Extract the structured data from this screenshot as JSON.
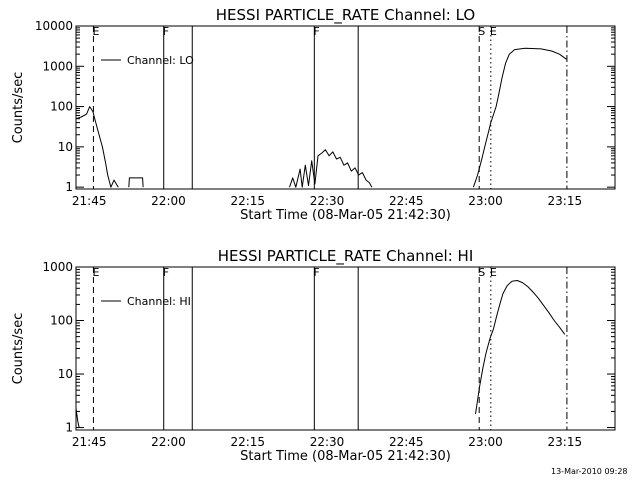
{
  "footer": {
    "timestamp": "13-Mar-2010 09:28"
  },
  "chart_data": [
    {
      "type": "line",
      "title": "HESSI PARTICLE_RATE Channel: LO",
      "xlabel": "Start Time (08-Mar-05 21:42:30)",
      "ylabel": "Counts/sec",
      "xlim_min": [
        0,
        102
      ],
      "x_ticks": [
        2.5,
        17.5,
        32.5,
        47.5,
        62.5,
        77.5,
        92.5
      ],
      "x_tick_labels": [
        "21:45",
        "22:00",
        "22:15",
        "22:30",
        "22:45",
        "23:00",
        "23:15"
      ],
      "y_scale": "log",
      "ylim": [
        0.9,
        10000
      ],
      "y_ticks": [
        1,
        10,
        100,
        1000,
        10000
      ],
      "y_tick_labels": [
        "1",
        "10",
        "100",
        "1000",
        "10000"
      ],
      "legend": {
        "position": "top-left",
        "label": "Channel: LO"
      },
      "markers": [
        {
          "x": 3.3,
          "style": "dash",
          "label": "E"
        },
        {
          "x": 16.6,
          "style": "solid",
          "label": "F"
        },
        {
          "x": 22.0,
          "style": "solid",
          "label": ""
        },
        {
          "x": 45.1,
          "style": "solid",
          "label": "F"
        },
        {
          "x": 53.4,
          "style": "solid",
          "label": ""
        },
        {
          "x": 76.3,
          "style": "dash",
          "label": "S"
        },
        {
          "x": 78.5,
          "style": "dot",
          "label": "E"
        },
        {
          "x": 92.9,
          "style": "dashdot",
          "label": ""
        }
      ],
      "series": [
        {
          "name": "Channel: LO",
          "segments": [
            [
              [
                0,
                50
              ],
              [
                1,
                55
              ],
              [
                2,
                65
              ],
              [
                2.6,
                100
              ],
              [
                3.2,
                75
              ],
              [
                4.0,
                30
              ],
              [
                5.0,
                10
              ],
              [
                5.6,
                4
              ],
              [
                6.0,
                2
              ],
              [
                6.6,
                1
              ],
              [
                7.2,
                1.5
              ],
              [
                8.0,
                1
              ]
            ],
            [
              [
                10,
                1
              ],
              [
                10.1,
                1.7
              ],
              [
                12.6,
                1.7
              ],
              [
                12.7,
                1
              ]
            ],
            [
              [
                40.4,
                1
              ],
              [
                41.0,
                1.7
              ],
              [
                41.6,
                1
              ],
              [
                42.4,
                2.8
              ],
              [
                42.8,
                1
              ],
              [
                43.4,
                3.5
              ],
              [
                44.0,
                1.1
              ],
              [
                44.6,
                4.5
              ],
              [
                45.2,
                1.2
              ],
              [
                45.8,
                6
              ],
              [
                46.5,
                7
              ],
              [
                47.2,
                8.5
              ],
              [
                47.9,
                6
              ],
              [
                48.6,
                7.5
              ],
              [
                49.3,
                5
              ],
              [
                50.0,
                5.5
              ],
              [
                50.7,
                3.5
              ],
              [
                51.4,
                4
              ],
              [
                52.1,
                2.5
              ],
              [
                52.8,
                3
              ],
              [
                53.5,
                2
              ],
              [
                54.2,
                2.3
              ],
              [
                54.9,
                1.5
              ],
              [
                55.5,
                1.3
              ],
              [
                56.0,
                1
              ]
            ],
            [
              [
                75.2,
                1
              ],
              [
                76.0,
                2
              ],
              [
                76.8,
                5
              ],
              [
                77.5,
                12
              ],
              [
                78.0,
                22
              ],
              [
                78.5,
                40
              ],
              [
                79.5,
                100
              ],
              [
                80.0,
                200
              ],
              [
                80.6,
                500
              ],
              [
                81.3,
                1200
              ],
              [
                82.0,
                2000
              ],
              [
                83.0,
                2600
              ],
              [
                85.0,
                2800
              ],
              [
                88.0,
                2700
              ],
              [
                90.0,
                2400
              ],
              [
                91.5,
                2000
              ],
              [
                92.8,
                1500
              ]
            ]
          ]
        }
      ]
    },
    {
      "type": "line",
      "title": "HESSI PARTICLE_RATE Channel: HI",
      "xlabel": "Start Time (08-Mar-05 21:42:30)",
      "ylabel": "Counts/sec",
      "xlim_min": [
        0,
        102
      ],
      "x_ticks": [
        2.5,
        17.5,
        32.5,
        47.5,
        62.5,
        77.5,
        92.5
      ],
      "x_tick_labels": [
        "21:45",
        "22:00",
        "22:15",
        "22:30",
        "22:45",
        "23:00",
        "23:15"
      ],
      "y_scale": "log",
      "ylim": [
        0.9,
        1000
      ],
      "y_ticks": [
        1,
        10,
        100,
        1000
      ],
      "y_tick_labels": [
        "1",
        "10",
        "100",
        "1000"
      ],
      "legend": {
        "position": "top-left",
        "label": "Channel: HI"
      },
      "markers": [
        {
          "x": 3.3,
          "style": "dash",
          "label": "E"
        },
        {
          "x": 16.6,
          "style": "solid",
          "label": "F"
        },
        {
          "x": 22.0,
          "style": "solid",
          "label": ""
        },
        {
          "x": 45.1,
          "style": "solid",
          "label": "F"
        },
        {
          "x": 53.4,
          "style": "solid",
          "label": ""
        },
        {
          "x": 76.3,
          "style": "dash",
          "label": "S"
        },
        {
          "x": 78.5,
          "style": "dot",
          "label": "E"
        },
        {
          "x": 92.9,
          "style": "dashdot",
          "label": ""
        }
      ],
      "series": [
        {
          "name": "Channel: HI",
          "segments": [
            [
              [
                0,
                2.3
              ],
              [
                0.35,
                1.3
              ],
              [
                0.6,
                1
              ]
            ],
            [
              [
                75.6,
                1.8
              ],
              [
                76.4,
                6
              ],
              [
                77.0,
                13
              ],
              [
                77.6,
                25
              ],
              [
                78.3,
                45
              ],
              [
                79.0,
                70
              ],
              [
                79.6,
                120
              ],
              [
                80.2,
                200
              ],
              [
                80.8,
                320
              ],
              [
                81.6,
                450
              ],
              [
                82.5,
                540
              ],
              [
                83.5,
                560
              ],
              [
                84.5,
                510
              ],
              [
                85.5,
                430
              ],
              [
                86.5,
                340
              ],
              [
                87.5,
                260
              ],
              [
                88.5,
                190
              ],
              [
                89.5,
                140
              ],
              [
                90.5,
                100
              ],
              [
                91.5,
                75
              ],
              [
                92.5,
                55
              ]
            ]
          ]
        }
      ]
    }
  ]
}
